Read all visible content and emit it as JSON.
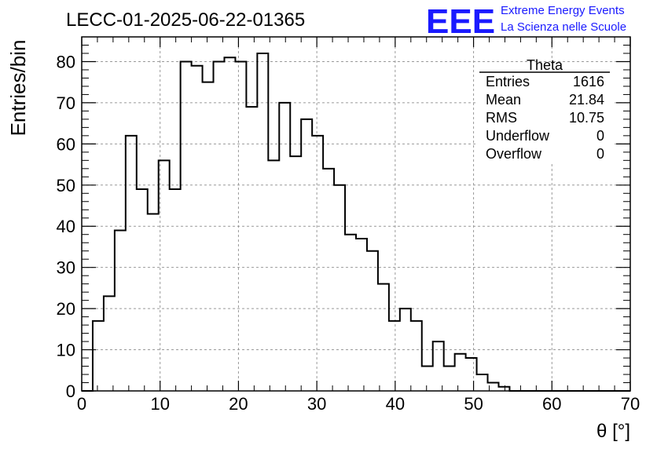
{
  "chart_data": {
    "type": "histogram",
    "title": "LECC-01-2025-06-22-01365",
    "xlabel": "θ [°]",
    "ylabel": "Entries/bin",
    "xlim": [
      0,
      70
    ],
    "ylim": [
      0,
      86
    ],
    "x_ticks": [
      "0",
      "10",
      "20",
      "30",
      "40",
      "50",
      "60",
      "70"
    ],
    "y_ticks": [
      "0",
      "10",
      "20",
      "30",
      "40",
      "50",
      "60",
      "70",
      "80"
    ],
    "grid": true,
    "bin_width": 1.4,
    "bin_start": 0,
    "values": [
      0,
      17,
      23,
      39,
      62,
      49,
      43,
      56,
      49,
      80,
      79,
      75,
      80,
      81,
      80,
      69,
      82,
      56,
      70,
      57,
      66,
      62,
      54,
      50,
      38,
      37,
      34,
      26,
      17,
      20,
      17,
      6,
      12,
      6,
      9,
      8,
      4,
      2,
      1,
      0,
      0,
      0,
      0,
      0,
      0,
      0,
      0,
      0,
      0,
      0
    ],
    "series": [
      {
        "values_ref": "values",
        "color": "#000000"
      }
    ]
  },
  "stats_box": {
    "title": "Theta",
    "rows": [
      {
        "label": "Entries",
        "value": "1616"
      },
      {
        "label": "Mean",
        "value": "21.84"
      },
      {
        "label": "RMS",
        "value": "10.75"
      },
      {
        "label": "Underflow",
        "value": "0"
      },
      {
        "label": "Overflow",
        "value": "0"
      }
    ]
  },
  "logo": {
    "mark": "EEE",
    "line1": "Extreme Energy Events",
    "line2": "La Scienza nelle Scuole",
    "color": "#1a1aff"
  }
}
